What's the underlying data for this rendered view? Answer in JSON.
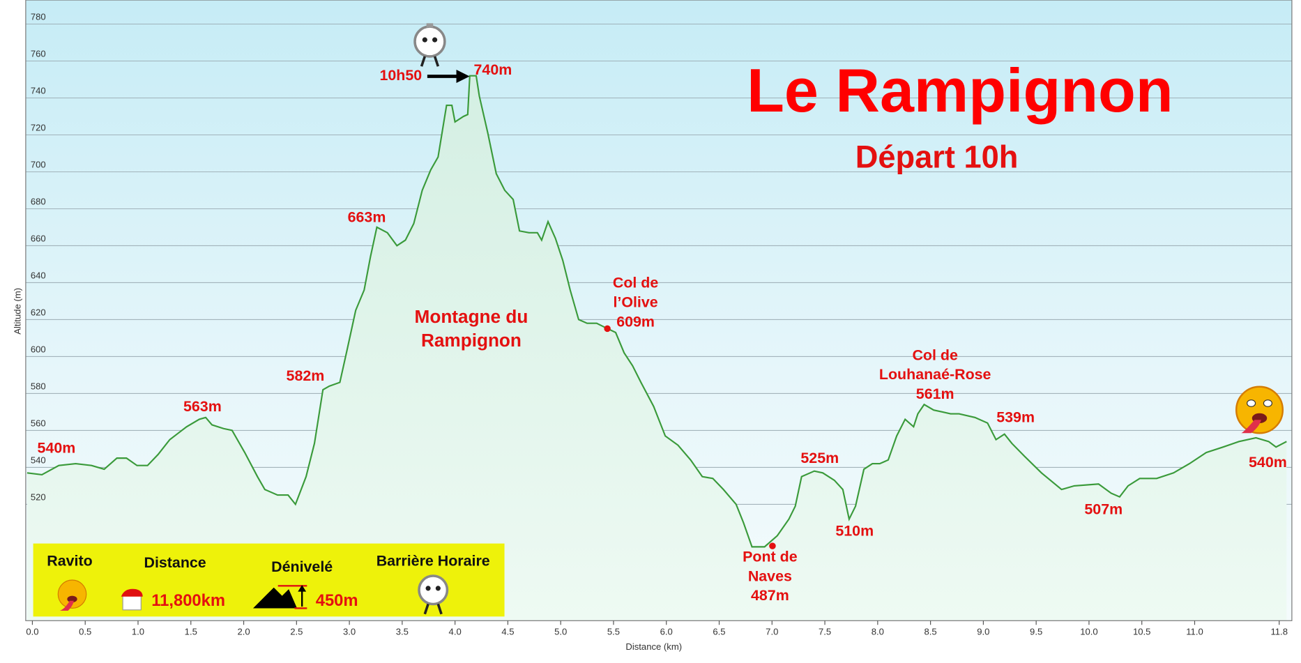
{
  "chart_data": {
    "type": "area",
    "title": "Le Rampignon",
    "subtitle": "Départ 10h",
    "xlabel": "Distance (km)",
    "ylabel": "Altitude (m)",
    "xlim": [
      -0.063,
      11.92
    ],
    "ylim": [
      457,
      793
    ],
    "xticks": [
      {
        "value": 0,
        "label": "0.0"
      },
      0.5,
      {
        "value": 1,
        "label": "1.0"
      },
      1.5,
      {
        "value": 2,
        "label": "2.0"
      },
      2.5,
      {
        "value": 3,
        "label": "3.0"
      },
      3.5,
      {
        "value": 4,
        "label": "4.0"
      },
      4.5,
      {
        "value": 5,
        "label": "5.0"
      },
      5.5,
      {
        "value": 6,
        "label": "6.0"
      },
      6.5,
      {
        "value": 7,
        "label": "7.0"
      },
      7.5,
      {
        "value": 8,
        "label": "8.0"
      },
      8.5,
      {
        "value": 9,
        "label": "9.0"
      },
      9.5,
      {
        "value": 10,
        "label": "10.0"
      },
      10.5,
      {
        "value": 11,
        "label": "11.0"
      },
      11.8
    ],
    "yticks": [
      520,
      540,
      560,
      580,
      600,
      620,
      640,
      660,
      680,
      700,
      720,
      740,
      760,
      780
    ],
    "grid": true,
    "series": [
      {
        "name": "Altitude",
        "color": "#3a9a3a",
        "x": [
          -0.05,
          0.09,
          0.25,
          0.41,
          0.56,
          0.68,
          0.8,
          0.89,
          0.99,
          1.09,
          1.19,
          1.3,
          1.46,
          1.58,
          1.64,
          1.7,
          1.81,
          1.89,
          2.01,
          2.13,
          2.2,
          2.32,
          2.42,
          2.49,
          2.59,
          2.67,
          2.75,
          2.81,
          2.91,
          2.98,
          3.06,
          3.14,
          3.2,
          3.26,
          3.36,
          3.45,
          3.53,
          3.61,
          3.69,
          3.77,
          3.84,
          3.92,
          3.97,
          4.0,
          4.08,
          4.12,
          4.14,
          4.2,
          4.23,
          4.31,
          4.39,
          4.47,
          4.55,
          4.61,
          4.7,
          4.78,
          4.82,
          4.88,
          4.95,
          5.02,
          5.09,
          5.17,
          5.25,
          5.34,
          5.41,
          5.52,
          5.6,
          5.68,
          5.76,
          5.88,
          5.99,
          6.11,
          6.23,
          6.34,
          6.44,
          6.54,
          6.66,
          6.73,
          6.81,
          6.93,
          7.05,
          7.16,
          7.22,
          7.28,
          7.4,
          7.48,
          7.59,
          7.67,
          7.73,
          7.79,
          7.87,
          7.95,
          8.02,
          8.1,
          8.18,
          8.26,
          8.34,
          8.38,
          8.44,
          8.53,
          8.61,
          8.69,
          8.77,
          8.92,
          9.04,
          9.12,
          9.2,
          9.27,
          9.39,
          9.55,
          9.74,
          9.86,
          10.09,
          10.21,
          10.29,
          10.37,
          10.48,
          10.64,
          10.8,
          10.95,
          11.11,
          11.27,
          11.42,
          11.58,
          11.7,
          11.77,
          11.87
        ],
        "values": [
          537,
          536,
          541,
          542,
          541,
          539,
          545,
          545,
          541,
          541,
          547,
          555,
          562,
          566,
          567,
          563,
          561,
          560,
          548,
          535,
          528,
          525,
          525,
          520,
          535,
          553,
          582,
          584,
          586,
          604,
          625,
          636,
          654,
          670,
          667,
          660,
          663,
          672,
          690,
          701,
          708,
          736,
          736,
          727,
          730,
          731,
          752,
          752,
          741,
          721,
          699,
          690,
          685,
          668,
          667,
          667,
          663,
          673,
          664,
          652,
          636,
          620,
          618,
          618,
          616,
          613,
          602,
          595,
          586,
          573,
          557,
          552,
          544,
          535,
          534,
          528,
          520,
          510,
          497,
          497,
          503,
          512,
          519,
          535,
          538,
          537,
          533,
          528,
          512,
          519,
          539,
          542,
          542,
          544,
          557,
          566,
          562,
          569,
          574,
          571,
          570,
          569,
          569,
          567,
          564,
          555,
          558,
          553,
          546,
          537,
          528,
          530,
          531,
          526,
          524,
          530,
          534,
          534,
          537,
          542,
          548,
          551,
          554,
          556,
          554,
          551,
          554
        ]
      }
    ],
    "annotations": [
      [
        "540m"
      ],
      [
        "563m"
      ],
      [
        "582m"
      ],
      [
        "663m"
      ],
      [
        "740m"
      ],
      [
        "10h50"
      ],
      [
        "Montagne du",
        "Rampignon"
      ],
      [
        "Col de",
        "l’Olive",
        "609m"
      ],
      [
        "Pont de",
        "Naves",
        "487m"
      ],
      [
        "525m"
      ],
      [
        "510m"
      ],
      [
        "Col de",
        "Louhanaé-Rose",
        "561m"
      ],
      [
        "539m"
      ],
      [
        "507m"
      ],
      [
        "540m"
      ]
    ],
    "legend_box": {
      "ravito": "Ravito",
      "distance_label": "Distance",
      "distance": "11,800km",
      "elevation_label": "Dénivelé",
      "elevation": "450m",
      "cutoff": "Barrière Horaire"
    }
  }
}
